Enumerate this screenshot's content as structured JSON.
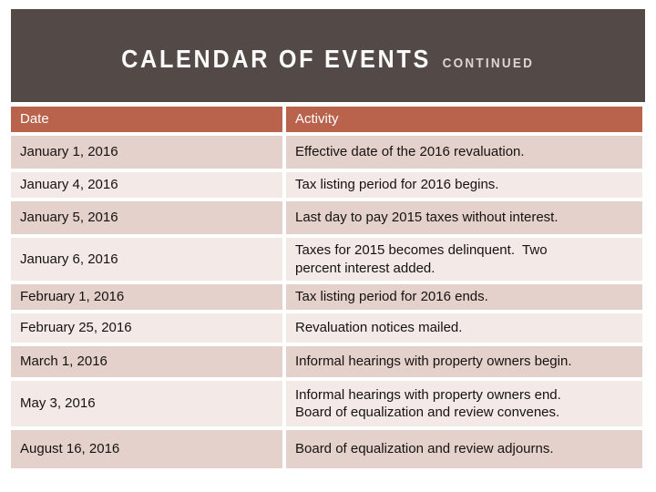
{
  "slide": {
    "title": "CALENDAR OF EVENTS",
    "subtitle": "CONTINUED"
  },
  "table": {
    "headers": {
      "date": "Date",
      "activity": "Activity"
    },
    "rows": [
      {
        "date": "January 1, 2016",
        "activity": "Effective date of the 2016 revaluation."
      },
      {
        "date": "January 4, 2016",
        "activity": "Tax listing period for 2016 begins."
      },
      {
        "date": "January 5, 2016",
        "activity": "Last day to pay 2015 taxes without interest."
      },
      {
        "date": "January 6, 2016",
        "activity": "Taxes for 2015 becomes delinquent.  Two\npercent interest added."
      },
      {
        "date": "February 1, 2016",
        "activity": "Tax listing period for 2016 ends."
      },
      {
        "date": "February 25, 2016",
        "activity": "Revaluation notices mailed."
      },
      {
        "date": "March 1, 2016",
        "activity": "Informal hearings with property owners begin."
      },
      {
        "date": "May 3, 2016",
        "activity": "Informal hearings with property owners end.\nBoard of equalization and review convenes."
      },
      {
        "date": "August 16, 2016",
        "activity": "Board of equalization and review adjourns."
      }
    ]
  },
  "colors": {
    "title_band_bg": "#534a48",
    "title_text": "#fcfbfb",
    "subtitle_text": "#dcd6d4",
    "table_header_bg": "#b9634d",
    "table_header_text": "#fefefe",
    "row_dark_pink": "#e5d1cb",
    "row_light_pink": "#f3e9e6",
    "body_text": "#151312",
    "grid_gap": "#ffffff"
  }
}
